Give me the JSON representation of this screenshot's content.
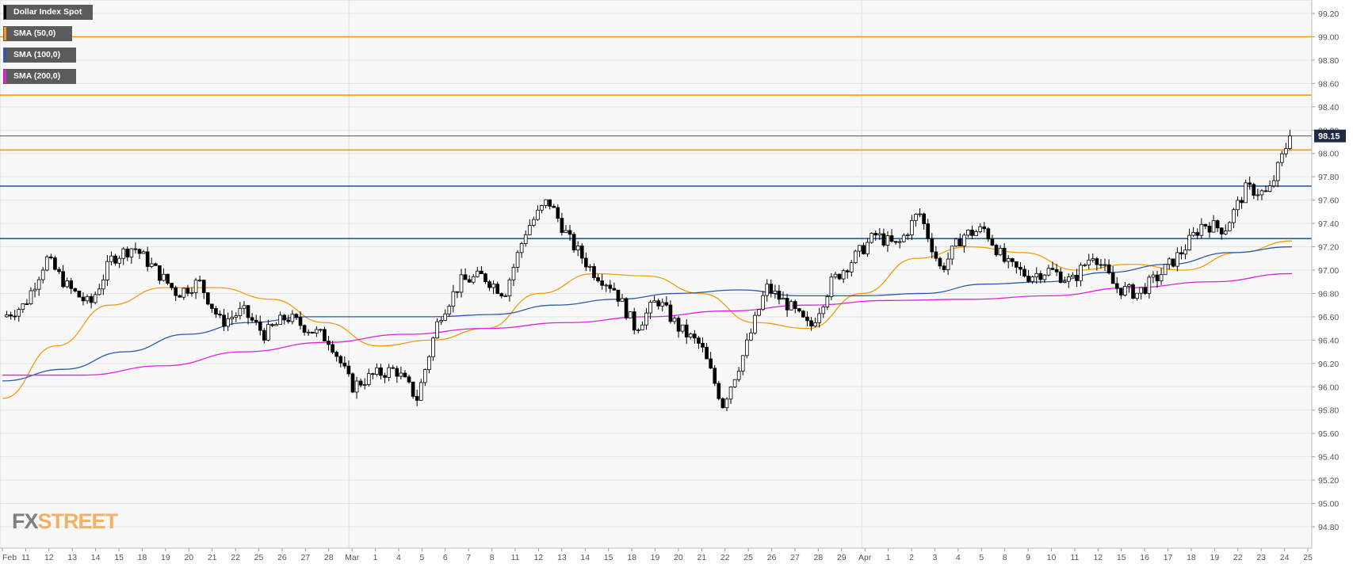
{
  "chart_data": {
    "type": "candlestick",
    "title": "Dollar Index Spot",
    "last_price": "98.15",
    "y_ticks": [
      "99.20",
      "99.00",
      "98.80",
      "98.60",
      "98.40",
      "98.20",
      "98.00",
      "97.80",
      "97.60",
      "97.40",
      "97.20",
      "97.00",
      "96.80",
      "96.60",
      "96.40",
      "96.20",
      "96.00",
      "95.80",
      "95.60",
      "95.40",
      "95.20",
      "95.00",
      "94.80"
    ],
    "ylim": [
      94.65,
      99.3
    ],
    "grid": true,
    "x_labels": [
      "Feb",
      "11",
      "12",
      "13",
      "14",
      "15",
      "18",
      "19",
      "20",
      "21",
      "22",
      "25",
      "26",
      "27",
      "28",
      "Mar",
      "1",
      "4",
      "5",
      "6",
      "7",
      "8",
      "11",
      "12",
      "13",
      "14",
      "15",
      "18",
      "19",
      "20",
      "21",
      "22",
      "25",
      "26",
      "27",
      "28",
      "29",
      "Apr",
      "1",
      "2",
      "3",
      "4",
      "5",
      "8",
      "9",
      "10",
      "11",
      "12",
      "15",
      "16",
      "17",
      "18",
      "19",
      "22",
      "23",
      "24",
      "25"
    ],
    "legend": [
      {
        "label": "Dollar Index Spot",
        "color": "#000000"
      },
      {
        "label": "SMA (50,0)",
        "color": "#f39c12"
      },
      {
        "label": "SMA (100,0)",
        "color": "#2a5ba8"
      },
      {
        "label": "SMA (200,0)",
        "color": "#e020e0"
      }
    ],
    "horizontal_levels": [
      {
        "value": 99.0,
        "color": "#f39c12"
      },
      {
        "value": 98.5,
        "color": "#f39c12"
      },
      {
        "value": 98.15,
        "color": "#555555"
      },
      {
        "value": 98.03,
        "color": "#f39c12"
      },
      {
        "value": 97.72,
        "color": "#2a5ba8"
      },
      {
        "value": 97.27,
        "color": "#2a5ba8"
      }
    ],
    "price_path": [
      96.6,
      96.7,
      97.1,
      96.85,
      96.7,
      97.1,
      97.2,
      97.0,
      96.8,
      96.9,
      96.55,
      96.65,
      96.45,
      96.6,
      96.5,
      96.4,
      96.0,
      96.1,
      96.15,
      95.9,
      96.6,
      96.9,
      96.95,
      96.8,
      97.35,
      97.6,
      97.25,
      97.0,
      96.85,
      96.5,
      96.75,
      96.5,
      96.35,
      95.85,
      96.3,
      96.85,
      96.7,
      96.5,
      96.9,
      97.1,
      97.3,
      97.2,
      97.5,
      97.0,
      97.3,
      97.35,
      97.05,
      96.95,
      97.0,
      96.9,
      97.15,
      96.85,
      96.8,
      96.95,
      97.15,
      97.4,
      97.35,
      97.7,
      97.65,
      98.15
    ],
    "series": [
      {
        "name": "SMA (50,0)",
        "color": "#f39c12",
        "values": [
          95.9,
          96.35,
          96.7,
          96.85,
          96.85,
          96.75,
          96.55,
          96.35,
          96.4,
          96.5,
          96.8,
          96.97,
          96.95,
          96.8,
          96.55,
          96.5,
          96.8,
          97.1,
          97.2,
          97.15,
          97.0,
          97.05,
          97.0,
          97.15,
          97.25
        ]
      },
      {
        "name": "SMA (100,0)",
        "color": "#2a5ba8",
        "values": [
          96.05,
          96.15,
          96.3,
          96.45,
          96.55,
          96.6,
          96.6,
          96.6,
          96.62,
          96.7,
          96.75,
          96.8,
          96.83,
          96.78,
          96.78,
          96.8,
          96.88,
          96.9,
          96.98,
          97.05,
          97.15,
          97.2
        ]
      },
      {
        "name": "SMA (200,0)",
        "color": "#e020e0",
        "values": [
          96.1,
          96.1,
          96.18,
          96.3,
          96.38,
          96.45,
          96.5,
          96.55,
          96.6,
          96.65,
          96.7,
          96.74,
          96.75,
          96.78,
          96.85,
          96.9,
          96.97
        ]
      }
    ]
  },
  "watermark": {
    "fx": "FX",
    "street": "STREET"
  }
}
